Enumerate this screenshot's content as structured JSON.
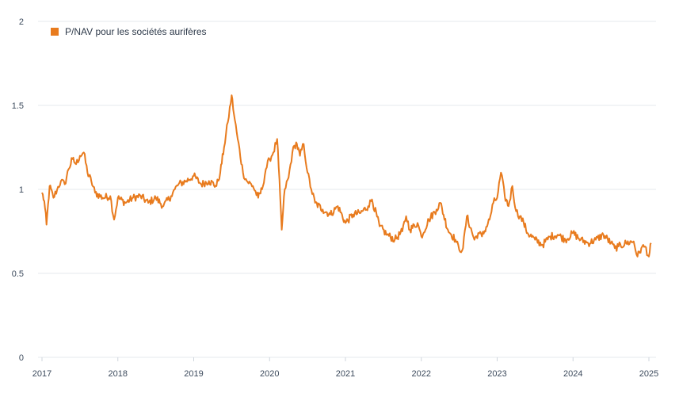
{
  "colors": {
    "series": "#E87B1E",
    "grid": "#E6E9ED",
    "text": "#3c4a5c"
  },
  "chart_data": {
    "type": "line",
    "title": "",
    "xlabel": "",
    "ylabel": "",
    "ylim": [
      0,
      2
    ],
    "xlim": [
      2017.0,
      2025.1
    ],
    "y_ticks": [
      0,
      0.5,
      1,
      1.5,
      2
    ],
    "y_tick_labels": [
      "0",
      "0.5",
      "1",
      "1.5",
      "2"
    ],
    "x_ticks": [
      2017,
      2018,
      2019,
      2020,
      2021,
      2022,
      2023,
      2024,
      2025
    ],
    "x_tick_labels": [
      "2017",
      "2018",
      "2019",
      "2020",
      "2021",
      "2022",
      "2023",
      "2024",
      "2025"
    ],
    "grid": true,
    "legend_position": "top-left",
    "series": [
      {
        "name": "P/NAV pour les sociétés aurifères",
        "x": [
          2017.0,
          2017.03,
          2017.06,
          2017.1,
          2017.15,
          2017.2,
          2017.25,
          2017.3,
          2017.35,
          2017.4,
          2017.45,
          2017.5,
          2017.55,
          2017.6,
          2017.65,
          2017.7,
          2017.8,
          2017.9,
          2017.95,
          2018.0,
          2018.1,
          2018.2,
          2018.3,
          2018.4,
          2018.5,
          2018.6,
          2018.7,
          2018.75,
          2018.8,
          2018.9,
          2019.0,
          2019.1,
          2019.2,
          2019.3,
          2019.35,
          2019.4,
          2019.45,
          2019.5,
          2019.53,
          2019.58,
          2019.65,
          2019.7,
          2019.78,
          2019.85,
          2019.9,
          2019.95,
          2020.0,
          2020.05,
          2020.1,
          2020.14,
          2020.16,
          2020.2,
          2020.25,
          2020.3,
          2020.35,
          2020.4,
          2020.45,
          2020.5,
          2020.55,
          2020.6,
          2020.7,
          2020.8,
          2020.9,
          2021.0,
          2021.1,
          2021.2,
          2021.3,
          2021.35,
          2021.45,
          2021.55,
          2021.65,
          2021.75,
          2021.8,
          2021.85,
          2021.95,
          2022.0,
          2022.1,
          2022.2,
          2022.25,
          2022.35,
          2022.45,
          2022.5,
          2022.55,
          2022.6,
          2022.7,
          2022.75,
          2022.8,
          2022.9,
          2022.95,
          2023.0,
          2023.05,
          2023.1,
          2023.15,
          2023.2,
          2023.25,
          2023.3,
          2023.35,
          2023.4,
          2023.5,
          2023.6,
          2023.7,
          2023.8,
          2023.9,
          2024.0,
          2024.1,
          2024.2,
          2024.3,
          2024.4,
          2024.5,
          2024.55,
          2024.6,
          2024.7,
          2024.8,
          2024.85,
          2024.9,
          2024.95,
          2025.0,
          2025.03
        ],
        "y": [
          0.98,
          0.93,
          0.79,
          1.02,
          0.95,
          1.0,
          1.05,
          1.03,
          1.12,
          1.18,
          1.15,
          1.2,
          1.22,
          1.1,
          1.05,
          0.98,
          0.95,
          0.96,
          0.82,
          0.95,
          0.92,
          0.95,
          0.96,
          0.92,
          0.95,
          0.9,
          0.96,
          1.0,
          1.03,
          1.05,
          1.08,
          1.03,
          1.05,
          1.02,
          1.1,
          1.25,
          1.4,
          1.56,
          1.45,
          1.3,
          1.1,
          1.05,
          1.02,
          0.95,
          1.0,
          1.12,
          1.18,
          1.22,
          1.3,
          0.95,
          0.76,
          1.0,
          1.07,
          1.22,
          1.28,
          1.2,
          1.27,
          1.1,
          1.0,
          0.92,
          0.88,
          0.85,
          0.9,
          0.8,
          0.85,
          0.86,
          0.9,
          0.94,
          0.78,
          0.73,
          0.7,
          0.75,
          0.84,
          0.76,
          0.8,
          0.72,
          0.82,
          0.88,
          0.92,
          0.76,
          0.7,
          0.64,
          0.65,
          0.84,
          0.7,
          0.74,
          0.72,
          0.82,
          0.92,
          0.95,
          1.1,
          0.96,
          0.9,
          1.02,
          0.87,
          0.84,
          0.8,
          0.74,
          0.7,
          0.67,
          0.72,
          0.73,
          0.7,
          0.74,
          0.7,
          0.68,
          0.7,
          0.73,
          0.68,
          0.65,
          0.66,
          0.68,
          0.69,
          0.6,
          0.65,
          0.66,
          0.6,
          0.68
        ]
      }
    ]
  }
}
